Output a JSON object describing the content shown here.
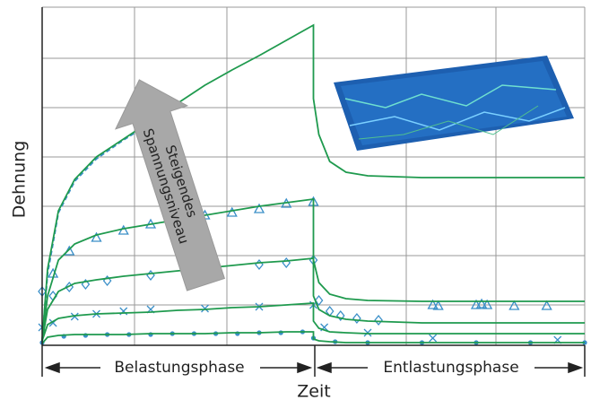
{
  "chart_data": {
    "type": "line",
    "y_label": "Dehnung",
    "x_label": "Zeit",
    "phases": [
      "Belastungsphase",
      "Entlastungsphase"
    ],
    "annotation": [
      "Steigendes",
      "Spannungsniveau"
    ],
    "xlim": [
      0,
      1
    ],
    "ylim": [
      0,
      377
    ],
    "model_color": "#1f9a4e",
    "measure_color": "#3a8fc8",
    "x": [
      0,
      0.01,
      0.03,
      0.06,
      0.1,
      0.15,
      0.2,
      0.25,
      0.3,
      0.35,
      0.4,
      0.45,
      0.5,
      0.5,
      0.51,
      0.53,
      0.56,
      0.6,
      0.7,
      0.8,
      1.0
    ],
    "series": [
      {
        "values": [
          5,
          85,
          150,
          185,
          210,
          230,
          250,
          270,
          290,
          307,
          323,
          340,
          357,
          275,
          235,
          205,
          193,
          189,
          187,
          187,
          187
        ]
      },
      {
        "values": [
          5,
          55,
          95,
          113,
          123,
          130,
          135,
          140,
          145,
          150,
          155,
          159,
          163,
          95,
          70,
          57,
          52,
          50,
          49,
          49,
          49
        ]
      },
      {
        "values": [
          5,
          40,
          60,
          69,
          73,
          77,
          80,
          83,
          86,
          89,
          92,
          94,
          97,
          55,
          40,
          33,
          29,
          27,
          25,
          25,
          25
        ]
      },
      {
        "values": [
          5,
          23,
          30,
          33,
          35,
          36,
          37,
          39,
          40,
          42,
          43,
          45,
          47,
          27,
          19,
          15,
          14,
          13,
          13,
          13,
          13
        ]
      },
      {
        "values": [
          2,
          9,
          11,
          12,
          12,
          12,
          13,
          13,
          13,
          14,
          14,
          15,
          15,
          7,
          5,
          4,
          3,
          3,
          3,
          3,
          3
        ]
      }
    ],
    "measurements": [
      {
        "marker": "dash",
        "x": [
          0,
          0.01,
          0.03,
          0.06,
          0.1,
          0.15,
          0.2,
          0.22
        ],
        "values": [
          5,
          80,
          148,
          183,
          208,
          229,
          248,
          252
        ]
      },
      {
        "marker": "triangle",
        "x": [
          0.02,
          0.05,
          0.1,
          0.15,
          0.2,
          0.3,
          0.35,
          0.4,
          0.45,
          0.5,
          0.72,
          0.73,
          0.8,
          0.81,
          0.82,
          0.87,
          0.93
        ],
        "values": [
          80,
          105,
          120,
          128,
          135,
          145,
          148,
          152,
          158,
          160,
          45,
          44,
          45,
          46,
          45,
          44,
          44
        ]
      },
      {
        "marker": "diamond",
        "x": [
          0,
          0.02,
          0.05,
          0.08,
          0.12,
          0.2,
          0.3,
          0.4,
          0.45,
          0.5,
          0.51,
          0.53,
          0.55,
          0.58,
          0.62
        ],
        "values": [
          60,
          55,
          65,
          68,
          72,
          78,
          85,
          90,
          92,
          95,
          50,
          38,
          33,
          30,
          28
        ]
      },
      {
        "marker": "cross",
        "x": [
          0,
          0.02,
          0.06,
          0.1,
          0.15,
          0.2,
          0.3,
          0.4,
          0.5,
          0.52,
          0.6,
          0.72,
          0.95
        ],
        "values": [
          20,
          25,
          32,
          35,
          38,
          40,
          41,
          43,
          45,
          20,
          14,
          8,
          6
        ]
      },
      {
        "marker": "dot",
        "x": [
          0,
          0.04,
          0.08,
          0.12,
          0.16,
          0.2,
          0.24,
          0.28,
          0.32,
          0.36,
          0.4,
          0.44,
          0.48,
          0.5,
          0.54,
          0.6,
          0.7,
          0.8,
          0.9,
          1.0
        ],
        "values": [
          3,
          10,
          11,
          12,
          12,
          12,
          13,
          13,
          13,
          13,
          14,
          14,
          15,
          8,
          4,
          3,
          3,
          3,
          3,
          3
        ]
      }
    ]
  }
}
